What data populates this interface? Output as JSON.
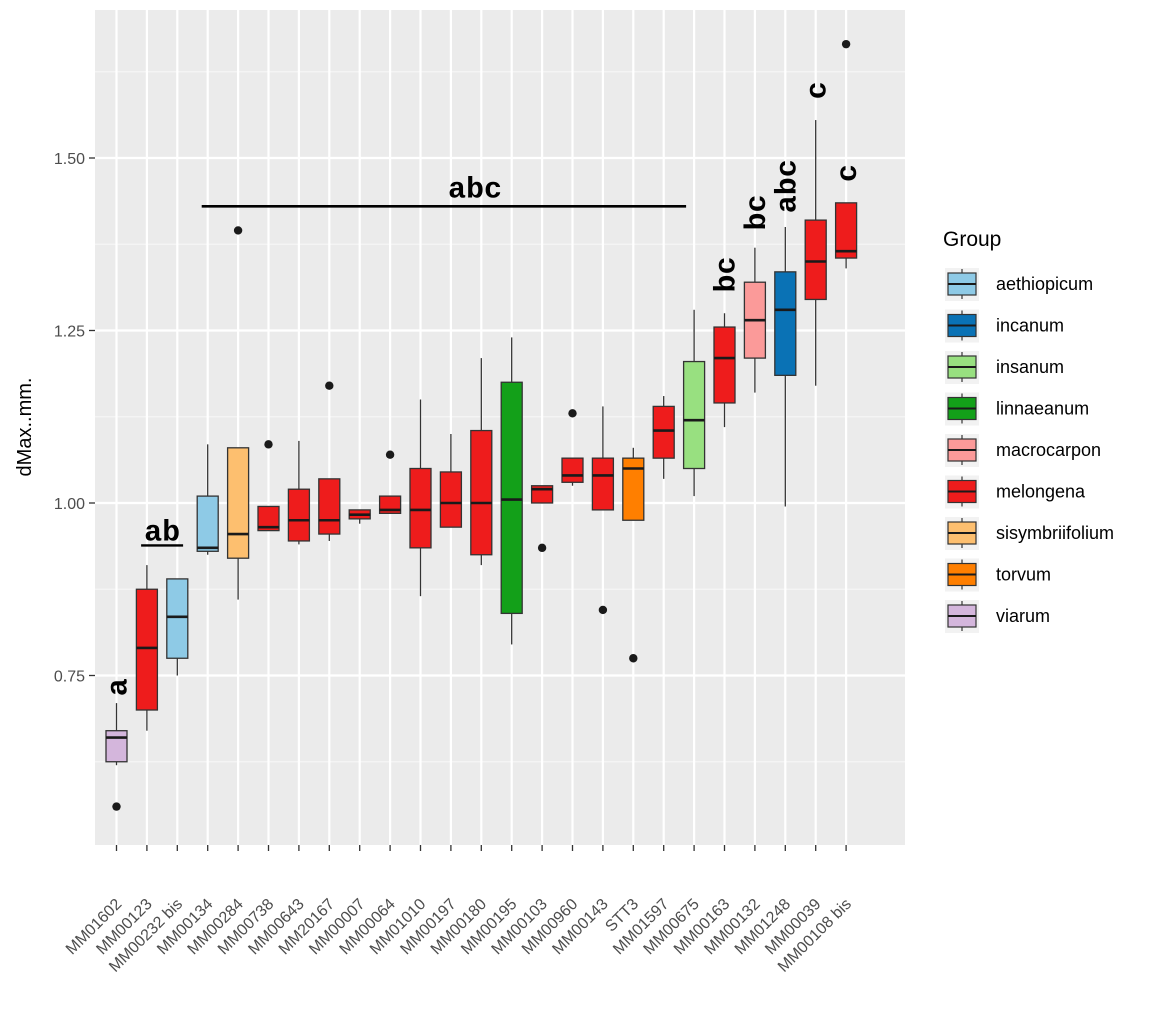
{
  "chart_data": {
    "type": "boxplot",
    "ylabel": "dMax..mm.",
    "xlabel": "",
    "ylim": [
      0.5,
      1.7
    ],
    "yticks": [
      0.75,
      1.0,
      1.25,
      1.5
    ],
    "ytick_labels": [
      "0.75",
      "1.00",
      "1.25",
      "1.50"
    ],
    "grid": true,
    "legend": {
      "title": "Group",
      "placement": "right",
      "entries": [
        {
          "name": "aethiopicum",
          "color": "#8ecae6"
        },
        {
          "name": "incanum",
          "color": "#0a72b5"
        },
        {
          "name": "insanum",
          "color": "#98e080"
        },
        {
          "name": "linnaeanum",
          "color": "#13a019"
        },
        {
          "name": "macrocarpon",
          "color": "#fb9a99"
        },
        {
          "name": "melongena",
          "color": "#ee1c1c"
        },
        {
          "name": "sisymbriifolium",
          "color": "#fdbf6f"
        },
        {
          "name": "torvum",
          "color": "#ff7f00"
        },
        {
          "name": "viarum",
          "color": "#d4b6dc"
        }
      ]
    },
    "categories": [
      "MM01602",
      "MM00123",
      "MM00232 bis",
      "MM00134",
      "MM00284",
      "MM00738",
      "MM00643",
      "MM20167",
      "MM00007",
      "MM00064",
      "MM01010",
      "MM00197",
      "MM00180",
      "MM00195",
      "MM00103",
      "MM00960",
      "MM00143",
      "STT3",
      "MM01597",
      "MM00675",
      "MM00163",
      "MM00132",
      "MM01248",
      "MM00039",
      "MM00108 bis"
    ],
    "boxes": [
      {
        "group": "viarum",
        "min": 0.62,
        "q1": 0.625,
        "median": 0.66,
        "q3": 0.67,
        "max": 0.71,
        "outliers": [
          0.56
        ]
      },
      {
        "group": "melongena",
        "min": 0.67,
        "q1": 0.7,
        "median": 0.79,
        "q3": 0.875,
        "max": 0.91,
        "outliers": []
      },
      {
        "group": "aethiopicum",
        "min": 0.75,
        "q1": 0.775,
        "median": 0.835,
        "q3": 0.89,
        "max": 0.89,
        "outliers": []
      },
      {
        "group": "aethiopicum",
        "min": 0.925,
        "q1": 0.93,
        "median": 0.935,
        "q3": 1.01,
        "max": 1.085,
        "outliers": []
      },
      {
        "group": "sisymbriifolium",
        "min": 0.86,
        "q1": 0.92,
        "median": 0.955,
        "q3": 1.08,
        "max": 1.08,
        "outliers": [
          1.395
        ]
      },
      {
        "group": "melongena",
        "min": 0.96,
        "q1": 0.96,
        "median": 0.965,
        "q3": 0.995,
        "max": 0.995,
        "outliers": [
          1.085
        ]
      },
      {
        "group": "melongena",
        "min": 0.94,
        "q1": 0.945,
        "median": 0.975,
        "q3": 1.02,
        "max": 1.09,
        "outliers": []
      },
      {
        "group": "melongena",
        "min": 0.945,
        "q1": 0.955,
        "median": 0.975,
        "q3": 1.035,
        "max": 1.035,
        "outliers": [
          1.17
        ]
      },
      {
        "group": "melongena",
        "min": 0.97,
        "q1": 0.977,
        "median": 0.983,
        "q3": 0.99,
        "max": 0.99,
        "outliers": []
      },
      {
        "group": "melongena",
        "min": 0.985,
        "q1": 0.985,
        "median": 0.99,
        "q3": 1.01,
        "max": 1.01,
        "outliers": [
          1.07
        ]
      },
      {
        "group": "melongena",
        "min": 0.865,
        "q1": 0.935,
        "median": 0.99,
        "q3": 1.05,
        "max": 1.15,
        "outliers": []
      },
      {
        "group": "melongena",
        "min": 0.965,
        "q1": 0.965,
        "median": 1.0,
        "q3": 1.045,
        "max": 1.1,
        "outliers": []
      },
      {
        "group": "melongena",
        "min": 0.91,
        "q1": 0.925,
        "median": 1.0,
        "q3": 1.105,
        "max": 1.21,
        "outliers": []
      },
      {
        "group": "linnaeanum",
        "min": 0.795,
        "q1": 0.84,
        "median": 1.005,
        "q3": 1.175,
        "max": 1.24,
        "outliers": []
      },
      {
        "group": "melongena",
        "min": 1.0,
        "q1": 1.0,
        "median": 1.02,
        "q3": 1.025,
        "max": 1.025,
        "outliers": [
          0.935
        ]
      },
      {
        "group": "melongena",
        "min": 1.025,
        "q1": 1.03,
        "median": 1.04,
        "q3": 1.065,
        "max": 1.065,
        "outliers": [
          1.13
        ]
      },
      {
        "group": "melongena",
        "min": 0.99,
        "q1": 0.99,
        "median": 1.04,
        "q3": 1.065,
        "max": 1.14,
        "outliers": [
          0.845
        ]
      },
      {
        "group": "torvum",
        "min": 0.975,
        "q1": 0.975,
        "median": 1.05,
        "q3": 1.065,
        "max": 1.08,
        "outliers": [
          0.775
        ]
      },
      {
        "group": "melongena",
        "min": 1.035,
        "q1": 1.065,
        "median": 1.105,
        "q3": 1.14,
        "max": 1.155,
        "outliers": []
      },
      {
        "group": "insanum",
        "min": 1.01,
        "q1": 1.05,
        "median": 1.12,
        "q3": 1.205,
        "max": 1.28,
        "outliers": []
      },
      {
        "group": "melongena",
        "min": 1.11,
        "q1": 1.145,
        "median": 1.21,
        "q3": 1.255,
        "max": 1.275,
        "outliers": []
      },
      {
        "group": "macrocarpon",
        "min": 1.16,
        "q1": 1.21,
        "median": 1.265,
        "q3": 1.32,
        "max": 1.37,
        "outliers": []
      },
      {
        "group": "incanum",
        "min": 0.995,
        "q1": 1.185,
        "median": 1.28,
        "q3": 1.335,
        "max": 1.4,
        "outliers": []
      },
      {
        "group": "melongena",
        "min": 1.17,
        "q1": 1.295,
        "median": 1.35,
        "q3": 1.41,
        "max": 1.555,
        "outliers": []
      },
      {
        "group": "melongena",
        "min": 1.34,
        "q1": 1.355,
        "median": 1.365,
        "q3": 1.435,
        "max": 1.435,
        "outliers": [
          1.665
        ]
      }
    ],
    "annotations": [
      {
        "text": "a",
        "category_index": 0,
        "y": 0.72,
        "rotated": true
      },
      {
        "text": "ab",
        "from_index": 1,
        "to_index": 2,
        "y": 0.94,
        "underline": true
      },
      {
        "text": "abc",
        "from_index": 3,
        "to_index": 19,
        "y": 1.43,
        "line": true
      },
      {
        "text": "bc",
        "category_index": 20,
        "y": 1.305,
        "rotated": true
      },
      {
        "text": "bc",
        "category_index": 21,
        "y": 1.395,
        "rotated": true
      },
      {
        "text": "abc",
        "category_index": 22,
        "y": 1.42,
        "rotated": true
      },
      {
        "text": "c",
        "category_index": 23,
        "y": 1.585,
        "rotated": true
      },
      {
        "text": "c",
        "category_index": 24,
        "y": 1.465,
        "rotated": true
      }
    ]
  }
}
